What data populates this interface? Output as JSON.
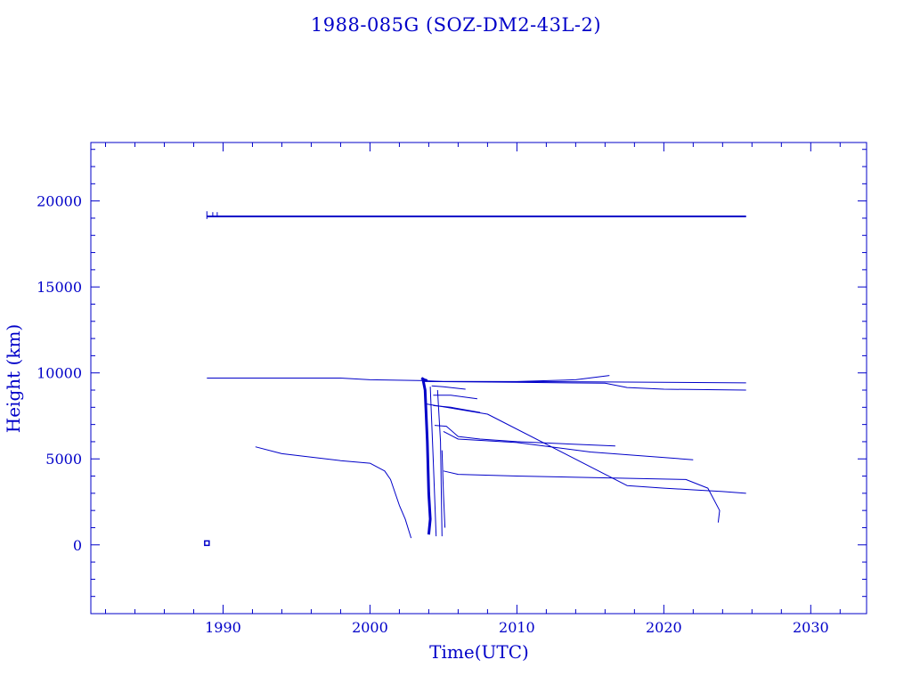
{
  "chart_data": {
    "type": "line",
    "title": "1988-085G (SOZ-DM2-43L-2)",
    "xlabel": "Time(UTC)",
    "ylabel": "Height (km)",
    "xlim": [
      1981.0,
      2033.8
    ],
    "ylim": [
      -4000,
      23400
    ],
    "xticks": [
      1990,
      2000,
      2010,
      2020,
      2030
    ],
    "xticklabels": [
      "1990",
      "2000",
      "2010",
      "2020",
      "2030"
    ],
    "yticks": [
      0,
      5000,
      10000,
      15000,
      20000
    ],
    "yticklabels": [
      "0",
      "5000",
      "10000",
      "15000",
      "20000"
    ],
    "grid": false,
    "legend": "none",
    "color": "#0000c8",
    "series": [
      {
        "x": [
          1988.9,
          2025.6
        ],
        "y": [
          19100,
          19100
        ],
        "w": 2
      },
      {
        "x": [
          1988.9,
          1988.9
        ],
        "y": [
          18950,
          19400
        ],
        "w": 1
      },
      {
        "x": [
          1989.3,
          1989.3
        ],
        "y": [
          19100,
          19350
        ],
        "w": 1
      },
      {
        "x": [
          1989.6,
          1989.6
        ],
        "y": [
          19100,
          19350
        ],
        "w": 1
      },
      {
        "x": [
          1988.9,
          1998.0,
          2000.0,
          2003.7
        ],
        "y": [
          9700,
          9700,
          9600,
          9550
        ],
        "w": 1
      },
      {
        "x": [
          2003.7,
          2010.0,
          2014.0,
          2016.3
        ],
        "y": [
          9500,
          9500,
          9600,
          9850
        ],
        "w": 1
      },
      {
        "x": [
          2003.6,
          2005.0,
          2015.0,
          2025.6
        ],
        "y": [
          9550,
          9500,
          9480,
          9420
        ],
        "w": 1
      },
      {
        "x": [
          2004.0,
          2010.0,
          2016.0,
          2017.5,
          2020.0,
          2025.6
        ],
        "y": [
          9500,
          9450,
          9400,
          9150,
          9050,
          9000
        ],
        "w": 1
      },
      {
        "x": [
          2003.8,
          2008.0,
          2016.7,
          2017.5,
          2020.0,
          2022.0,
          2024.0,
          2025.6
        ],
        "y": [
          8200,
          7600,
          3800,
          3450,
          3300,
          3200,
          3100,
          3000
        ],
        "w": 1
      },
      {
        "x": [
          2004.2,
          2005.0,
          2006.5
        ],
        "y": [
          9250,
          9200,
          9050
        ],
        "w": 1
      },
      {
        "x": [
          2004.3,
          2005.5,
          2007.3
        ],
        "y": [
          8700,
          8700,
          8500
        ],
        "w": 1
      },
      {
        "x": [
          2004.3,
          2005.5,
          2007.5
        ],
        "y": [
          8100,
          8000,
          7700
        ],
        "w": 1
      },
      {
        "x": [
          2004.4,
          2005.2,
          2006.0,
          2007.5,
          2010.0,
          2016.7
        ],
        "y": [
          6950,
          6900,
          6300,
          6150,
          6000,
          5750
        ],
        "w": 1
      },
      {
        "x": [
          2005.0,
          2006.0,
          2010.0,
          2015.0,
          2022.0
        ],
        "y": [
          6600,
          6150,
          5950,
          5400,
          4950
        ],
        "w": 1
      },
      {
        "x": [
          2005.0,
          2006.0,
          2010.0,
          2021.5,
          2023.0,
          2023.8,
          2023.7
        ],
        "y": [
          4300,
          4100,
          4000,
          3800,
          3300,
          2000,
          1300
        ],
        "w": 1
      },
      {
        "x": [
          1992.2,
          1994.0,
          1998.0,
          2000.0,
          2001.0,
          2001.4,
          2002.0,
          2002.4,
          2002.8
        ],
        "y": [
          5700,
          5300,
          4900,
          4750,
          4300,
          3800,
          2300,
          1500,
          400
        ],
        "w": 1
      },
      {
        "x": [
          2003.6,
          2003.75,
          2003.9,
          2004.0,
          2004.1,
          2004.0
        ],
        "y": [
          9650,
          9000,
          6000,
          3000,
          1500,
          600
        ],
        "w": 3
      },
      {
        "x": [
          2004.1,
          2004.3,
          2004.5
        ],
        "y": [
          9200,
          5000,
          500
        ],
        "w": 1
      },
      {
        "x": [
          2004.6,
          2004.8,
          2004.9
        ],
        "y": [
          9000,
          6000,
          500
        ],
        "w": 1
      },
      {
        "x": [
          2004.9,
          2005.0,
          2005.1
        ],
        "y": [
          5500,
          3000,
          1000
        ],
        "w": 1
      },
      {
        "x": [
          2003.5,
          2003.7,
          2003.9
        ],
        "y": [
          9700,
          9600,
          9550
        ],
        "w": 3
      }
    ],
    "markers": [
      {
        "x": 1988.9,
        "y": 100,
        "shape": "square"
      }
    ]
  }
}
